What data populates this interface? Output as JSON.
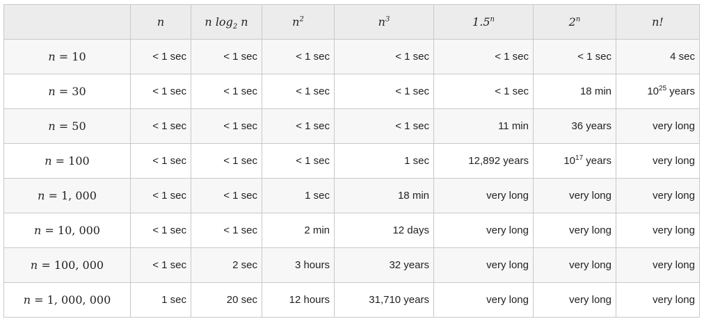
{
  "columns": [
    {
      "id": "blank",
      "label": ""
    },
    {
      "id": "n",
      "base": "n",
      "tail": "",
      "sup": "",
      "sub": ""
    },
    {
      "id": "nlogn",
      "base": "n log",
      "sub": "2",
      "tail": " n",
      "sup": ""
    },
    {
      "id": "n2",
      "base": "n",
      "sup": "2",
      "sub": "",
      "tail": ""
    },
    {
      "id": "n3",
      "base": "n",
      "sup": "3",
      "sub": "",
      "tail": ""
    },
    {
      "id": "1.5n",
      "base": "1.5",
      "sup": "n",
      "sub": "",
      "tail": ""
    },
    {
      "id": "2n",
      "base": "2",
      "sup": "n",
      "sub": "",
      "tail": ""
    },
    {
      "id": "nfact",
      "base": "n!",
      "sup": "",
      "sub": "",
      "tail": ""
    }
  ],
  "rows": [
    {
      "label": "n = 10",
      "var": "n",
      "eq": " = 10",
      "cells": [
        {
          "t": "< 1 sec"
        },
        {
          "t": "< 1 sec"
        },
        {
          "t": "< 1 sec"
        },
        {
          "t": "< 1 sec"
        },
        {
          "t": "< 1 sec"
        },
        {
          "t": "< 1 sec"
        },
        {
          "t": "4 sec"
        }
      ]
    },
    {
      "label": "n = 30",
      "var": "n",
      "eq": " = 30",
      "cells": [
        {
          "t": "< 1 sec"
        },
        {
          "t": "< 1 sec"
        },
        {
          "t": "< 1 sec"
        },
        {
          "t": "< 1 sec"
        },
        {
          "t": "< 1 sec"
        },
        {
          "t": "18 min"
        },
        {
          "pre": "10",
          "sup": "25",
          "post": " years"
        }
      ]
    },
    {
      "label": "n = 50",
      "var": "n",
      "eq": " = 50",
      "cells": [
        {
          "t": "< 1 sec"
        },
        {
          "t": "< 1 sec"
        },
        {
          "t": "< 1 sec"
        },
        {
          "t": "< 1 sec"
        },
        {
          "t": "11 min"
        },
        {
          "t": "36 years"
        },
        {
          "t": "very long"
        }
      ]
    },
    {
      "label": "n = 100",
      "var": "n",
      "eq": " = 100",
      "cells": [
        {
          "t": "< 1 sec"
        },
        {
          "t": "< 1 sec"
        },
        {
          "t": "< 1 sec"
        },
        {
          "t": "1 sec"
        },
        {
          "t": "12,892 years"
        },
        {
          "pre": "10",
          "sup": "17",
          "post": " years"
        },
        {
          "t": "very long"
        }
      ]
    },
    {
      "label": "n = 1,000",
      "var": "n",
      "eq": " = 1, 000",
      "cells": [
        {
          "t": "< 1 sec"
        },
        {
          "t": "< 1 sec"
        },
        {
          "t": "1 sec"
        },
        {
          "t": "18 min"
        },
        {
          "t": "very long"
        },
        {
          "t": "very long"
        },
        {
          "t": "very long"
        }
      ]
    },
    {
      "label": "n = 10,000",
      "var": "n",
      "eq": " = 10, 000",
      "cells": [
        {
          "t": "< 1 sec"
        },
        {
          "t": "< 1 sec"
        },
        {
          "t": "2 min"
        },
        {
          "t": "12 days"
        },
        {
          "t": "very long"
        },
        {
          "t": "very long"
        },
        {
          "t": "very long"
        }
      ]
    },
    {
      "label": "n = 100,000",
      "var": "n",
      "eq": " = 100, 000",
      "cells": [
        {
          "t": "< 1 sec"
        },
        {
          "t": "2 sec"
        },
        {
          "t": "3 hours"
        },
        {
          "t": "32 years"
        },
        {
          "t": "very long"
        },
        {
          "t": "very long"
        },
        {
          "t": "very long"
        }
      ]
    },
    {
      "label": "n = 1,000,000",
      "var": "n",
      "eq": " = 1, 000, 000",
      "cells": [
        {
          "t": "1 sec"
        },
        {
          "t": "20 sec"
        },
        {
          "t": "12 hours"
        },
        {
          "t": "31,710 years"
        },
        {
          "t": "very long"
        },
        {
          "t": "very long"
        },
        {
          "t": "very long"
        }
      ]
    }
  ]
}
